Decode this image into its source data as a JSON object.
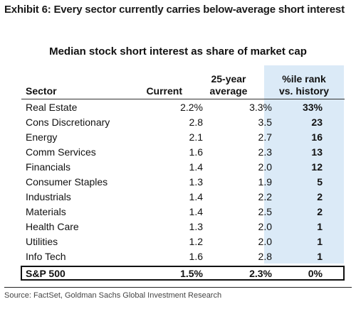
{
  "exhibit": {
    "title": "Exhibit 6: Every sector currently carries below-average short interest"
  },
  "table": {
    "title": "Median stock short interest as share of market cap",
    "headers": {
      "sector": "Sector",
      "current": "Current",
      "avg_line1": "25-year",
      "avg_line2": "average",
      "rank_line1": "%ile rank",
      "rank_line2": "vs. history"
    },
    "rows": [
      {
        "sector": "Real Estate",
        "current": "2.2%",
        "avg": "3.3%",
        "rank": "33%"
      },
      {
        "sector": "Cons Discretionary",
        "current": "2.8",
        "avg": "3.5",
        "rank": "23"
      },
      {
        "sector": "Energy",
        "current": "2.1",
        "avg": "2.7",
        "rank": "16"
      },
      {
        "sector": "Comm Services",
        "current": "1.6",
        "avg": "2.3",
        "rank": "13"
      },
      {
        "sector": "Financials",
        "current": "1.4",
        "avg": "2.0",
        "rank": "12"
      },
      {
        "sector": "Consumer Staples",
        "current": "1.3",
        "avg": "1.9",
        "rank": "5"
      },
      {
        "sector": "Industrials",
        "current": "1.4",
        "avg": "2.2",
        "rank": "2"
      },
      {
        "sector": "Materials",
        "current": "1.4",
        "avg": "2.5",
        "rank": "2"
      },
      {
        "sector": "Health Care",
        "current": "1.3",
        "avg": "2.0",
        "rank": "1"
      },
      {
        "sector": "Utilities",
        "current": "1.2",
        "avg": "2.0",
        "rank": "1"
      },
      {
        "sector": "Info Tech",
        "current": "1.6",
        "avg": "2.8",
        "rank": "1"
      }
    ],
    "total": {
      "sector": "S&P 500",
      "current": "1.5%",
      "avg": "2.3%",
      "rank": "0%"
    }
  },
  "source": "Source: FactSet, Goldman Sachs Global Investment Research",
  "colors": {
    "rank_highlight": "#dbeaf7"
  }
}
